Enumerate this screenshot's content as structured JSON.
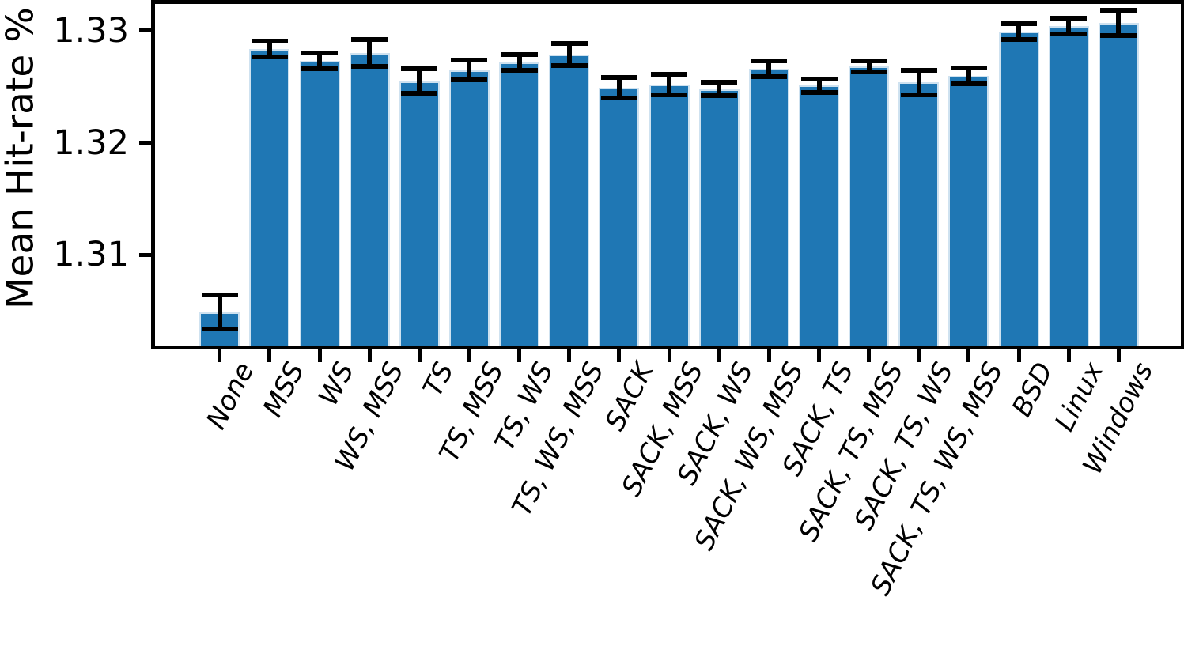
{
  "chart_data": {
    "type": "bar",
    "title": "",
    "xlabel": "",
    "ylabel": "Mean Hit-rate %",
    "categories": [
      "None",
      "MSS",
      "WS",
      "WS, MSS",
      "TS",
      "TS, MSS",
      "TS, WS",
      "TS, WS, MSS",
      "SACK",
      "SACK, MSS",
      "SACK, WS",
      "SACK, WS, MSS",
      "SACK, TS",
      "SACK, TS, MSS",
      "SACK, TS, WS",
      "SACK, TS, WS, MSS",
      "BSD",
      "Linux",
      "Windows"
    ],
    "values": [
      1.3049,
      1.3284,
      1.3273,
      1.328,
      1.3255,
      1.3265,
      1.3272,
      1.3279,
      1.3249,
      1.3252,
      1.3248,
      1.3266,
      1.3251,
      1.3268,
      1.3254,
      1.326,
      1.3299,
      1.3304,
      1.3307
    ],
    "errors": [
      0.0015,
      0.0007,
      0.0007,
      0.0012,
      0.0011,
      0.0009,
      0.0007,
      0.001,
      0.0009,
      0.0009,
      0.0006,
      0.0007,
      0.0006,
      0.0005,
      0.0011,
      0.0007,
      0.0007,
      0.0007,
      0.0011
    ],
    "yticks": [
      1.31,
      1.32,
      1.33
    ],
    "ytick_labels": [
      "1.31",
      "1.32",
      "1.33"
    ],
    "ylim": [
      1.3019,
      1.3324
    ],
    "grid": false,
    "legend": "none",
    "xtick_rotation_deg": 63,
    "xtick_style": "italic",
    "bar_color": "#1f77b4",
    "bar_edge_color": "#cfe2f0",
    "error_color": "#000000",
    "axis_color": "#000000",
    "background_color": "#ffffff"
  }
}
